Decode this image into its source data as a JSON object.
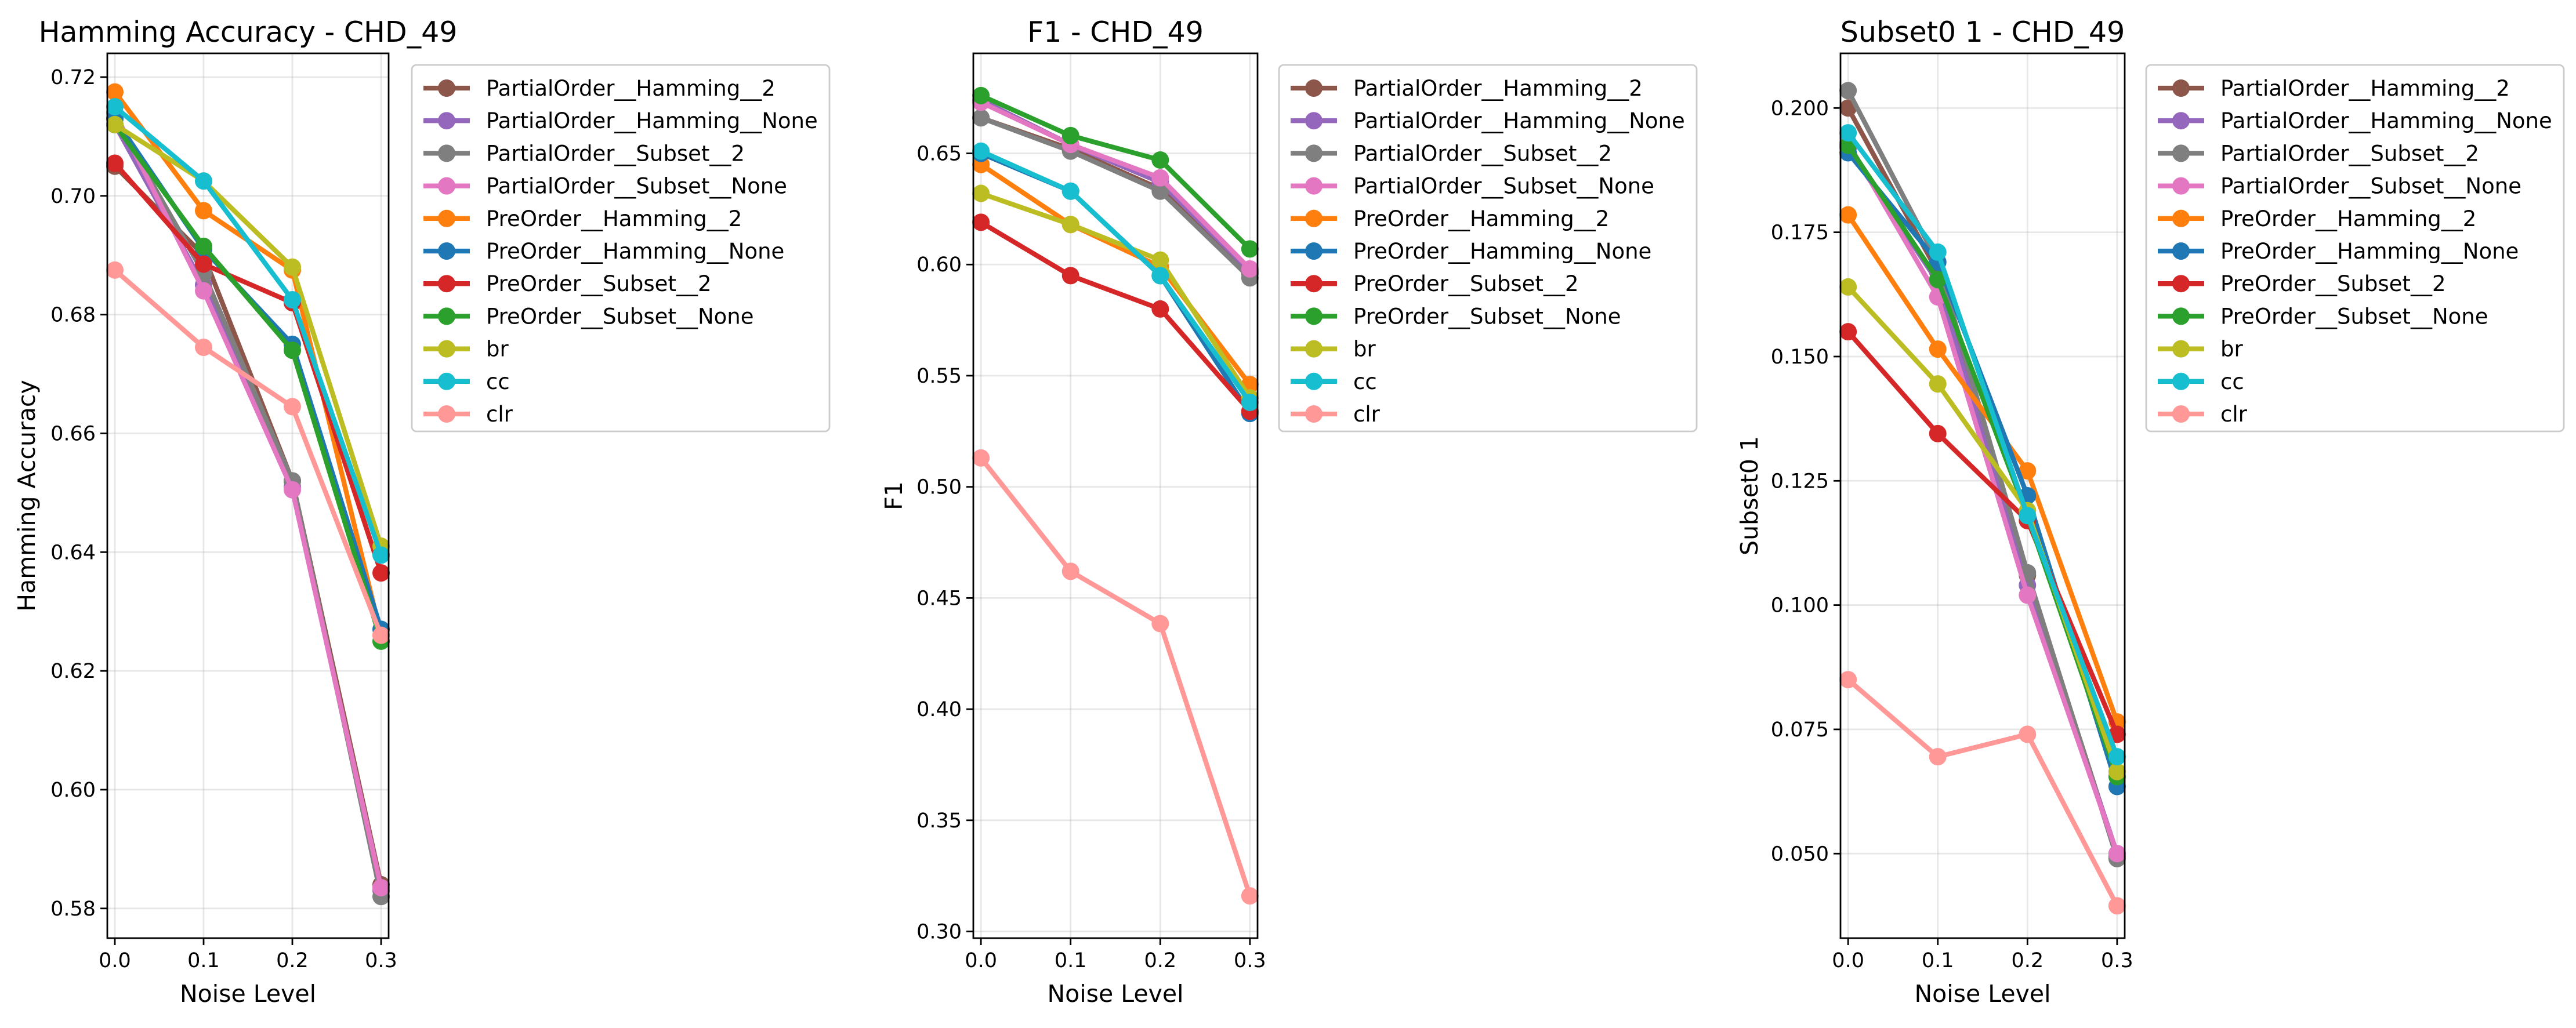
{
  "chart_data": [
    {
      "type": "line",
      "title": "Hamming Accuracy - CHD_49",
      "xlabel": "Noise Level",
      "ylabel": "Hamming Accuracy",
      "x": [
        0.0,
        0.1,
        0.2,
        0.3
      ],
      "x_tick_labels": [
        "0.0",
        "0.1",
        "0.2",
        "0.3"
      ],
      "ylim": [
        0.575,
        0.724
      ],
      "y_ticks": [
        "0.58",
        "0.60",
        "0.62",
        "0.64",
        "0.66",
        "0.68",
        "0.70",
        "0.72"
      ],
      "grid": true,
      "legend_position": "outside-right",
      "series": [
        {
          "name": "PartialOrder__Hamming__2",
          "color": "#8c564b",
          "values": [
            0.705,
            0.69,
            0.652,
            0.584
          ]
        },
        {
          "name": "PartialOrder__Hamming__None",
          "color": "#9467bd",
          "values": [
            0.712,
            0.685,
            0.651,
            0.583
          ]
        },
        {
          "name": "PartialOrder__Subset__2",
          "color": "#7f7f7f",
          "values": [
            0.713,
            0.687,
            0.652,
            0.582
          ]
        },
        {
          "name": "PartialOrder__Subset__None",
          "color": "#e377c2",
          "values": [
            0.714,
            0.684,
            0.6505,
            0.5835
          ]
        },
        {
          "name": "PreOrder__Hamming__2",
          "color": "#ff7f0e",
          "values": [
            0.7175,
            0.6975,
            0.6875,
            0.626
          ]
        },
        {
          "name": "PreOrder__Hamming__None",
          "color": "#1f77b4",
          "values": [
            0.713,
            0.691,
            0.675,
            0.627
          ]
        },
        {
          "name": "PreOrder__Subset__2",
          "color": "#d62728",
          "values": [
            0.7055,
            0.6885,
            0.682,
            0.6365
          ]
        },
        {
          "name": "PreOrder__Subset__None",
          "color": "#2ca02c",
          "values": [
            0.712,
            0.6915,
            0.674,
            0.625
          ]
        },
        {
          "name": "br",
          "color": "#bcbd22",
          "values": [
            0.712,
            0.7025,
            0.688,
            0.641
          ]
        },
        {
          "name": "cc",
          "color": "#17becf",
          "values": [
            0.715,
            0.7025,
            0.6825,
            0.6395
          ]
        },
        {
          "name": "clr",
          "color": "#ff9896",
          "values": [
            0.6875,
            0.6745,
            0.6645,
            0.626
          ]
        }
      ]
    },
    {
      "type": "line",
      "title": "F1 - CHD_49",
      "xlabel": "Noise Level",
      "ylabel": "F1",
      "x": [
        0.0,
        0.1,
        0.2,
        0.3
      ],
      "x_tick_labels": [
        "0.0",
        "0.1",
        "0.2",
        "0.3"
      ],
      "ylim": [
        0.297,
        0.695
      ],
      "y_ticks": [
        "0.30",
        "0.35",
        "0.40",
        "0.45",
        "0.50",
        "0.55",
        "0.60",
        "0.65"
      ],
      "grid": true,
      "legend_position": "outside-right",
      "series": [
        {
          "name": "PartialOrder__Hamming__2",
          "color": "#8c564b",
          "values": [
            0.666,
            0.652,
            0.634,
            0.596
          ]
        },
        {
          "name": "PartialOrder__Hamming__None",
          "color": "#9467bd",
          "values": [
            0.674,
            0.654,
            0.637,
            0.597
          ]
        },
        {
          "name": "PartialOrder__Subset__2",
          "color": "#7f7f7f",
          "values": [
            0.666,
            0.651,
            0.633,
            0.594
          ]
        },
        {
          "name": "PartialOrder__Subset__None",
          "color": "#e377c2",
          "values": [
            0.673,
            0.654,
            0.639,
            0.598
          ]
        },
        {
          "name": "PreOrder__Hamming__2",
          "color": "#ff7f0e",
          "values": [
            0.645,
            0.618,
            0.599,
            0.546
          ]
        },
        {
          "name": "PreOrder__Hamming__None",
          "color": "#1f77b4",
          "values": [
            0.65,
            0.633,
            0.595,
            0.533
          ]
        },
        {
          "name": "PreOrder__Subset__2",
          "color": "#d62728",
          "values": [
            0.619,
            0.595,
            0.58,
            0.534
          ]
        },
        {
          "name": "PreOrder__Subset__None",
          "color": "#2ca02c",
          "values": [
            0.676,
            0.658,
            0.647,
            0.607
          ]
        },
        {
          "name": "br",
          "color": "#bcbd22",
          "values": [
            0.632,
            0.618,
            0.602,
            0.54
          ]
        },
        {
          "name": "cc",
          "color": "#17becf",
          "values": [
            0.651,
            0.633,
            0.595,
            0.538
          ]
        },
        {
          "name": "clr",
          "color": "#ff9896",
          "values": [
            0.513,
            0.462,
            0.4385,
            0.316
          ]
        }
      ]
    },
    {
      "type": "line",
      "title": "Subset0 1 - CHD_49",
      "xlabel": "Noise Level",
      "ylabel": "Subset0 1",
      "x": [
        0.0,
        0.1,
        0.2,
        0.3
      ],
      "x_tick_labels": [
        "0.0",
        "0.1",
        "0.2",
        "0.3"
      ],
      "ylim": [
        0.033,
        0.211
      ],
      "y_ticks": [
        "0.050",
        "0.075",
        "0.100",
        "0.125",
        "0.150",
        "0.175",
        "0.200"
      ],
      "grid": true,
      "legend_position": "outside-right",
      "series": [
        {
          "name": "PartialOrder__Hamming__2",
          "color": "#8c564b",
          "values": [
            0.2,
            0.167,
            0.106,
            0.0495
          ]
        },
        {
          "name": "PartialOrder__Hamming__None",
          "color": "#9467bd",
          "values": [
            0.192,
            0.165,
            0.104,
            0.05
          ]
        },
        {
          "name": "PartialOrder__Subset__2",
          "color": "#7f7f7f",
          "values": [
            0.2035,
            0.169,
            0.1065,
            0.049
          ]
        },
        {
          "name": "PartialOrder__Subset__None",
          "color": "#e377c2",
          "values": [
            0.193,
            0.162,
            0.102,
            0.05
          ]
        },
        {
          "name": "PreOrder__Hamming__2",
          "color": "#ff7f0e",
          "values": [
            0.1785,
            0.1515,
            0.127,
            0.0765
          ]
        },
        {
          "name": "PreOrder__Hamming__None",
          "color": "#1f77b4",
          "values": [
            0.191,
            0.169,
            0.122,
            0.0635
          ]
        },
        {
          "name": "PreOrder__Subset__2",
          "color": "#d62728",
          "values": [
            0.155,
            0.1345,
            0.117,
            0.074
          ]
        },
        {
          "name": "PreOrder__Subset__None",
          "color": "#2ca02c",
          "values": [
            0.1925,
            0.1655,
            0.118,
            0.0655
          ]
        },
        {
          "name": "br",
          "color": "#bcbd22",
          "values": [
            0.164,
            0.1445,
            0.119,
            0.0665
          ]
        },
        {
          "name": "cc",
          "color": "#17becf",
          "values": [
            0.195,
            0.171,
            0.118,
            0.0695
          ]
        },
        {
          "name": "clr",
          "color": "#ff9896",
          "values": [
            0.085,
            0.0695,
            0.074,
            0.0395
          ]
        }
      ]
    }
  ]
}
